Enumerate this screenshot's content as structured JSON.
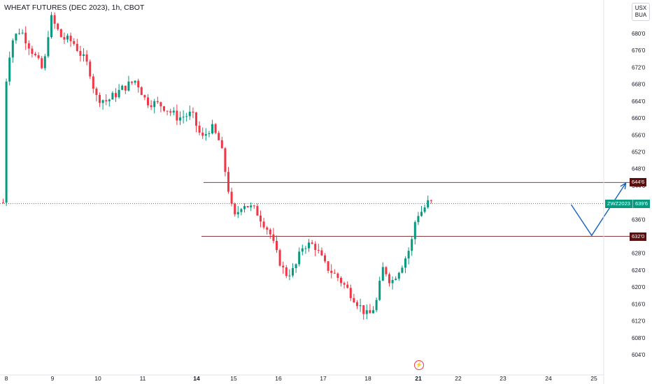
{
  "header": {
    "title": "WHEAT FUTURES (DEC 2023), 1h, CBOT",
    "currency_line1": "USX",
    "currency_line2": "BUA"
  },
  "chart_data": {
    "type": "candlestick",
    "symbol": "ZWZ2023",
    "interval": "1h",
    "y_ticks": [
      "680'0",
      "676'0",
      "672'0",
      "668'0",
      "664'0",
      "660'0",
      "656'0",
      "652'0",
      "648'0",
      "644'0",
      "640'0",
      "636'0",
      "632'0",
      "628'0",
      "624'0",
      "620'0",
      "616'0",
      "612'0",
      "608'0",
      "604'0"
    ],
    "y_tick_values": [
      680,
      676,
      672,
      668,
      664,
      660,
      656,
      652,
      648,
      644,
      640,
      636,
      632,
      628,
      624,
      620,
      616,
      612,
      608,
      604
    ],
    "x_ticks": [
      "8",
      "9",
      "10",
      "11",
      "14",
      "15",
      "16",
      "17",
      "18",
      "21",
      "22",
      "23",
      "24",
      "25"
    ],
    "x_bold": [
      "14",
      "21"
    ],
    "ylim": [
      602,
      685
    ],
    "last_price": 639.75,
    "last_price_label": "639'6",
    "levels": [
      {
        "value": 644.75,
        "label": "644'6",
        "color": "#8b3a3a"
      },
      {
        "value": 632.0,
        "label": "632'0",
        "color": "#8b3a3a"
      }
    ],
    "projection": [
      {
        "day": 20.5,
        "price": 639.5
      },
      {
        "day": 20.95,
        "price": 632.2
      },
      {
        "day": 21.7,
        "price": 644.6
      }
    ],
    "waypoints": [
      [
        8.0,
        665
      ],
      [
        8.15,
        678
      ],
      [
        8.35,
        681
      ],
      [
        8.6,
        676
      ],
      [
        8.85,
        671
      ],
      [
        9.0,
        684
      ],
      [
        9.25,
        679
      ],
      [
        9.5,
        678
      ],
      [
        9.85,
        672
      ],
      [
        10.0,
        665
      ],
      [
        10.25,
        664
      ],
      [
        10.6,
        667
      ],
      [
        10.9,
        669
      ],
      [
        11.1,
        664
      ],
      [
        11.4,
        663
      ],
      [
        11.7,
        660
      ],
      [
        11.95,
        661
      ],
      [
        12.2,
        655
      ],
      [
        12.45,
        658
      ],
      [
        12.7,
        654
      ],
      [
        12.9,
        644
      ],
      [
        13.05,
        636
      ],
      [
        13.25,
        640
      ],
      [
        13.55,
        638
      ],
      [
        13.85,
        633
      ],
      [
        14.0,
        628
      ],
      [
        14.2,
        623
      ],
      [
        14.4,
        624
      ],
      [
        14.6,
        630
      ],
      [
        14.85,
        630
      ],
      [
        15.1,
        625
      ],
      [
        15.4,
        622
      ],
      [
        15.7,
        618
      ],
      [
        15.9,
        615
      ],
      [
        16.05,
        613
      ],
      [
        16.2,
        616
      ],
      [
        16.35,
        625
      ],
      [
        16.5,
        621
      ],
      [
        16.75,
        626
      ],
      [
        16.9,
        630
      ],
      [
        17.0,
        637
      ],
      [
        17.15,
        638
      ],
      [
        17.3,
        640
      ]
    ],
    "x_tick_days": [
      1,
      2,
      3,
      4,
      5,
      6,
      7,
      8,
      9,
      10,
      11,
      12,
      13,
      14
    ]
  }
}
